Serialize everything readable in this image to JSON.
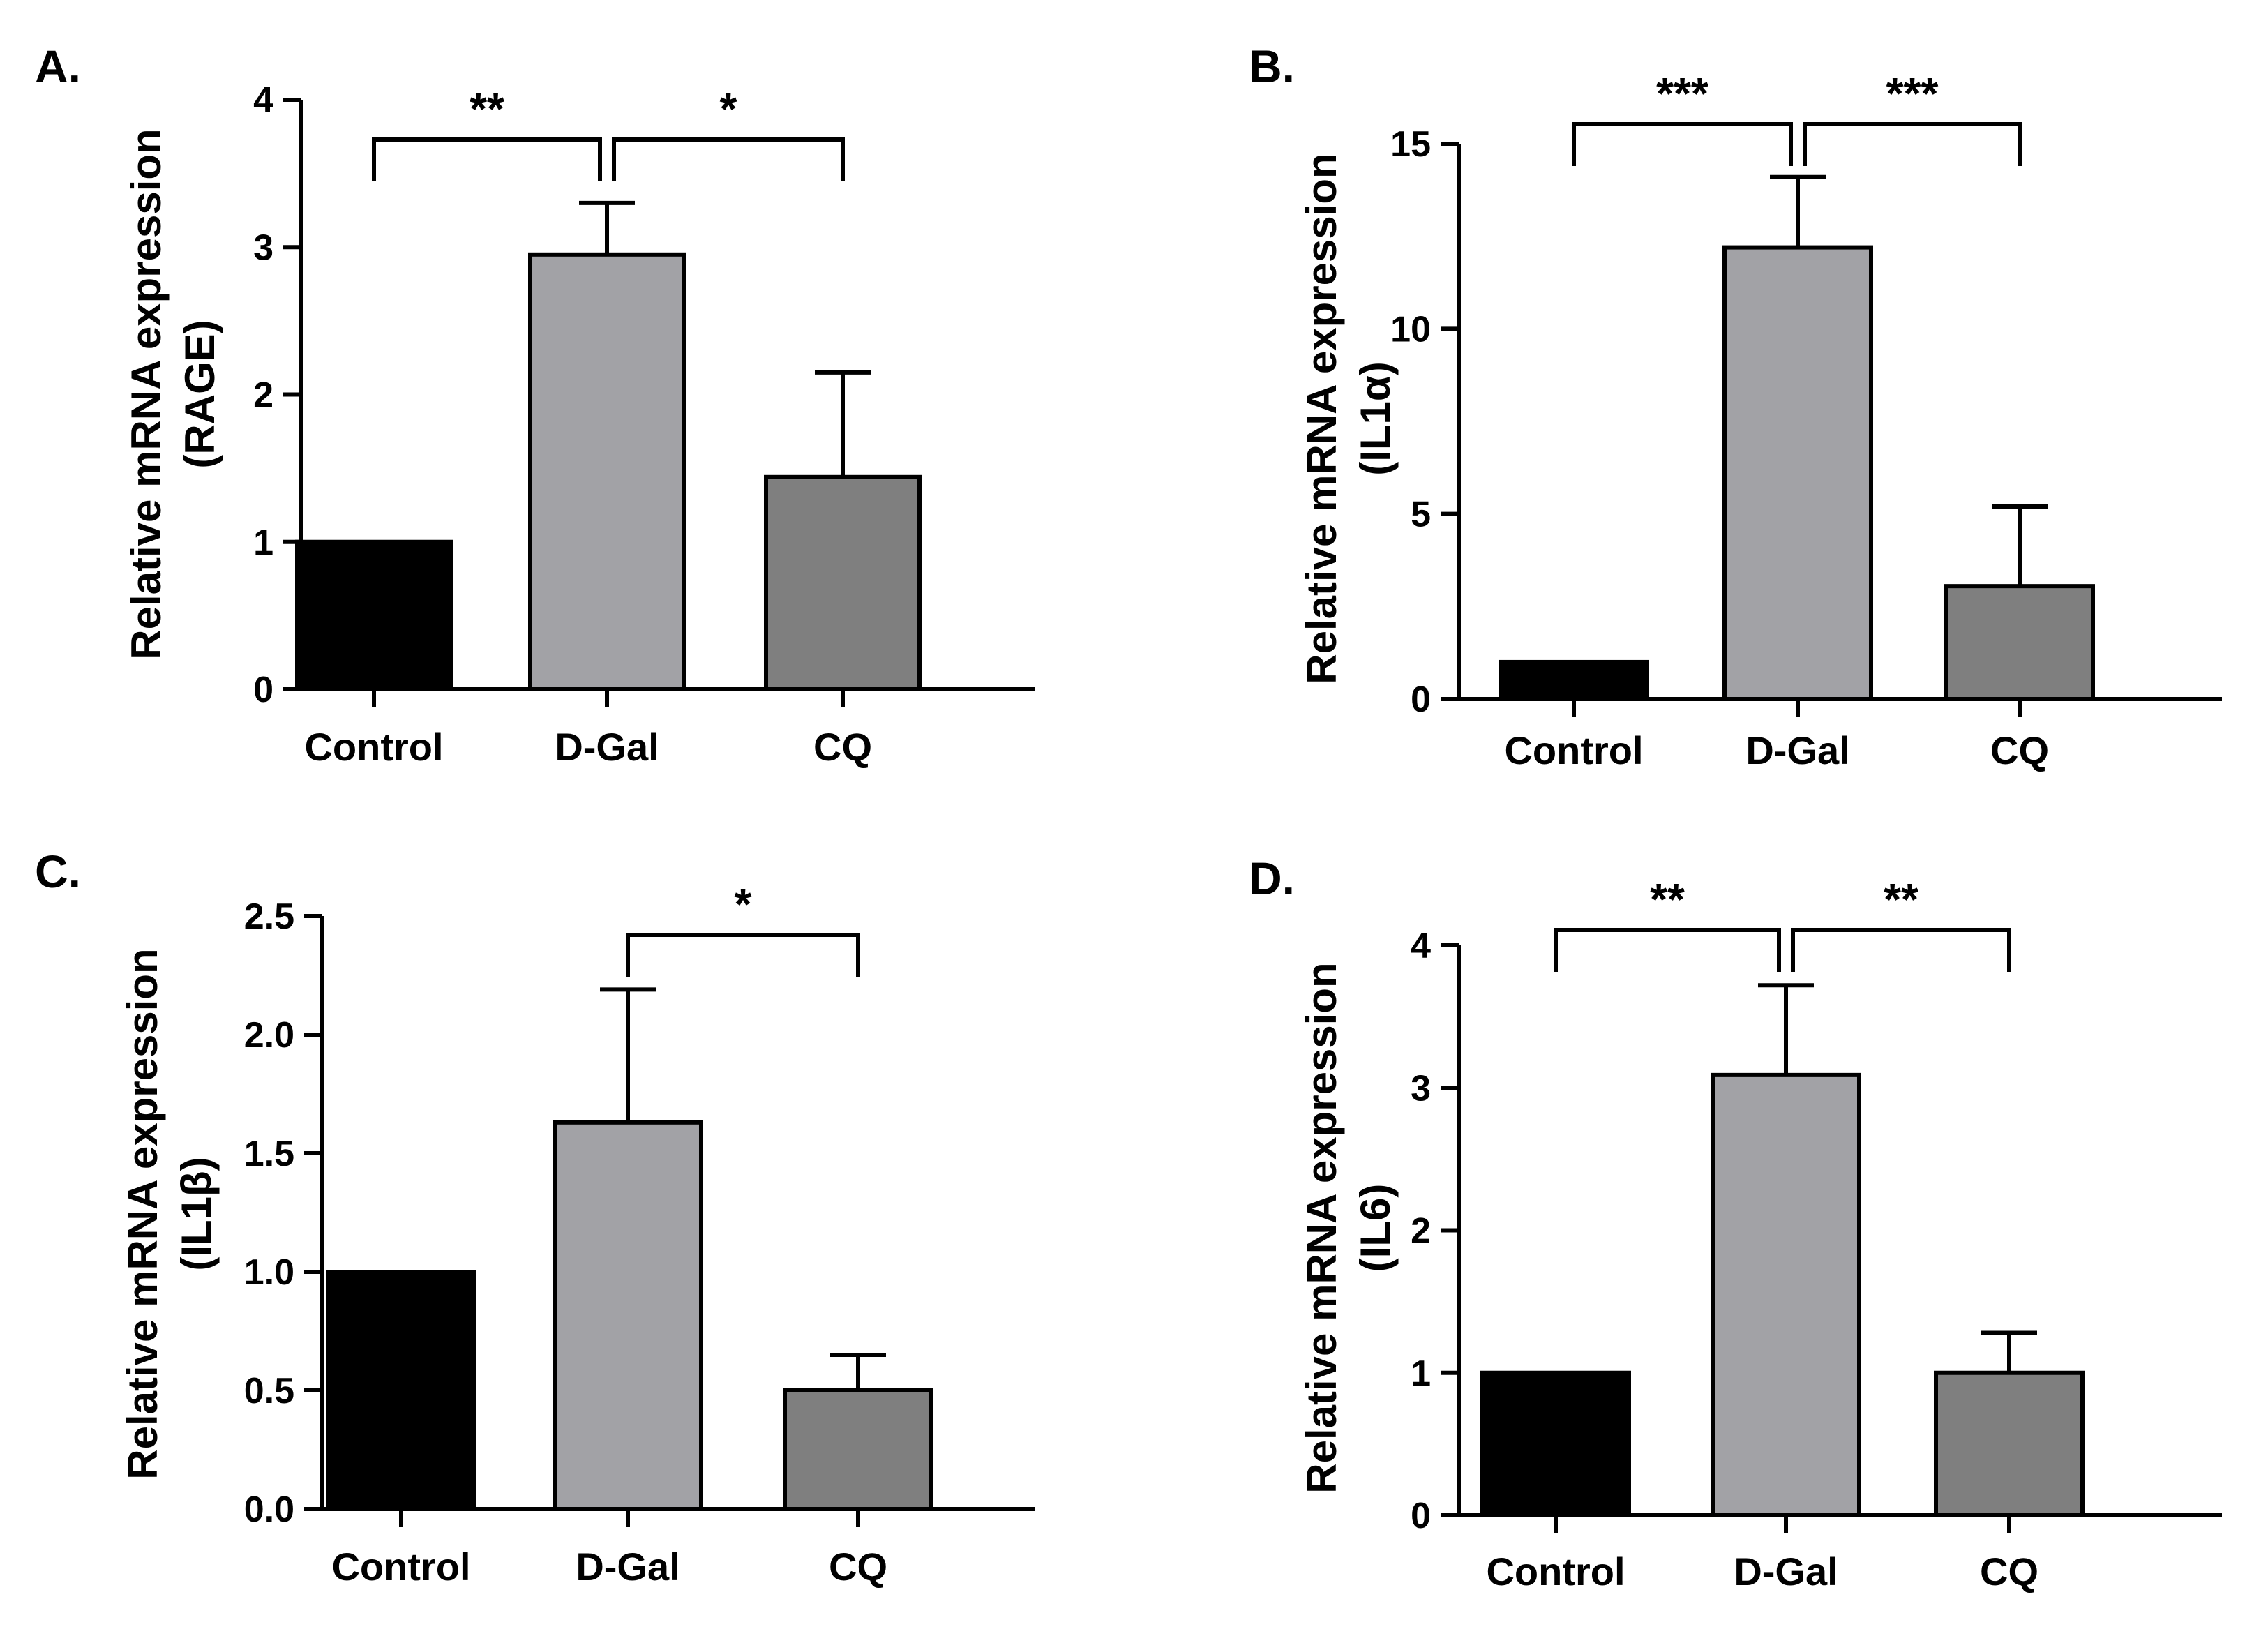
{
  "chart_data": [
    {
      "type": "bar",
      "panel": "A.",
      "categories": [
        "Control",
        "D-Gal",
        "CQ"
      ],
      "values": [
        1.0,
        2.95,
        1.44
      ],
      "errors": [
        0,
        0.35,
        0.71
      ],
      "colors": [
        "#000000",
        "#a2a2a6",
        "#7f7f7f"
      ],
      "ylabel": [
        "Relative mRNA expression",
        "(RAGE)"
      ],
      "ylim": [
        0,
        4
      ],
      "yticks": [
        "0",
        "1",
        "2",
        "3",
        "4"
      ],
      "significance": [
        {
          "from": 0,
          "to": 1,
          "label": "**"
        },
        {
          "from": 1,
          "to": 2,
          "label": "*"
        }
      ]
    },
    {
      "type": "bar",
      "panel": "B.",
      "categories": [
        "Control",
        "D-Gal",
        "CQ"
      ],
      "values": [
        1.0,
        12.2,
        3.05
      ],
      "errors": [
        0,
        1.9,
        2.15
      ],
      "colors": [
        "#000000",
        "#a2a2a6",
        "#7f7f7f"
      ],
      "ylabel": [
        "Relative mRNA expression",
        "(IL1α)"
      ],
      "ylim": [
        0,
        15
      ],
      "yticks": [
        "0",
        "5",
        "10",
        "15"
      ],
      "significance": [
        {
          "from": 0,
          "to": 1,
          "label": "***"
        },
        {
          "from": 1,
          "to": 2,
          "label": "***"
        }
      ]
    },
    {
      "type": "bar",
      "panel": "C.",
      "categories": [
        "Control",
        "D-Gal",
        "CQ"
      ],
      "values": [
        1.0,
        1.63,
        0.5
      ],
      "errors": [
        0,
        0.56,
        0.15
      ],
      "colors": [
        "#000000",
        "#a2a2a6",
        "#7f7f7f"
      ],
      "ylabel": [
        "Relative mRNA expression",
        "(IL1β)"
      ],
      "ylim": [
        0,
        2.5
      ],
      "yticks": [
        "0.0",
        "0.5",
        "1.0",
        "1.5",
        "2.0",
        "2.5"
      ],
      "significance": [
        {
          "from": 1,
          "to": 2,
          "label": "*"
        }
      ]
    },
    {
      "type": "bar",
      "panel": "D.",
      "categories": [
        "Control",
        "D-Gal",
        "CQ"
      ],
      "values": [
        1.0,
        3.09,
        1.0
      ],
      "errors": [
        0,
        0.63,
        0.28
      ],
      "colors": [
        "#000000",
        "#a2a2a6",
        "#7f7f7f"
      ],
      "ylabel": [
        "Relative mRNA expression",
        "(IL6)"
      ],
      "ylim": [
        0,
        4
      ],
      "yticks": [
        "0",
        "1",
        "2",
        "3",
        "4"
      ],
      "significance": [
        {
          "from": 0,
          "to": 1,
          "label": "**"
        },
        {
          "from": 1,
          "to": 2,
          "label": "**"
        }
      ]
    }
  ]
}
